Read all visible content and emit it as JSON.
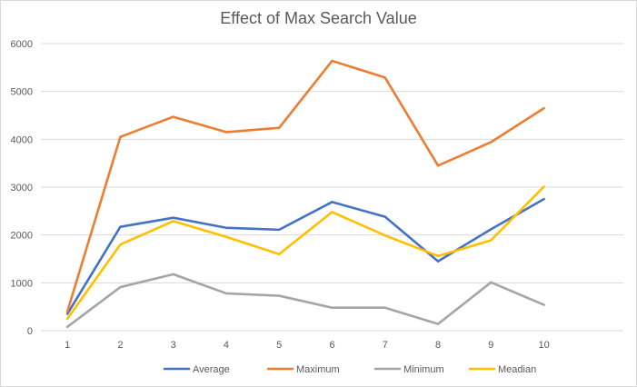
{
  "chart_data": {
    "type": "line",
    "title": "Effect of Max Search Value",
    "xlabel": "",
    "ylabel": "",
    "categories": [
      "1",
      "2",
      "3",
      "4",
      "5",
      "6",
      "7",
      "8",
      "9",
      "10"
    ],
    "ylim": [
      0,
      6000
    ],
    "yticks": [
      0,
      1000,
      2000,
      3000,
      4000,
      5000,
      6000
    ],
    "grid": true,
    "legend_position": "bottom",
    "series": [
      {
        "name": "Average",
        "color": "#4472c4",
        "values": [
          350,
          2170,
          2360,
          2150,
          2110,
          2690,
          2380,
          1450,
          2120,
          2750
        ]
      },
      {
        "name": "Maximum",
        "color": "#ed7d31",
        "values": [
          400,
          4050,
          4470,
          4150,
          4240,
          5640,
          5290,
          3450,
          3940,
          4650
        ]
      },
      {
        "name": "Minimum",
        "color": "#a5a5a5",
        "values": [
          80,
          910,
          1180,
          780,
          730,
          480,
          480,
          140,
          1010,
          540
        ]
      },
      {
        "name": "Meadian",
        "color": "#ffc000",
        "values": [
          250,
          1800,
          2290,
          1960,
          1600,
          2480,
          1990,
          1560,
          1890,
          3010
        ]
      }
    ]
  }
}
